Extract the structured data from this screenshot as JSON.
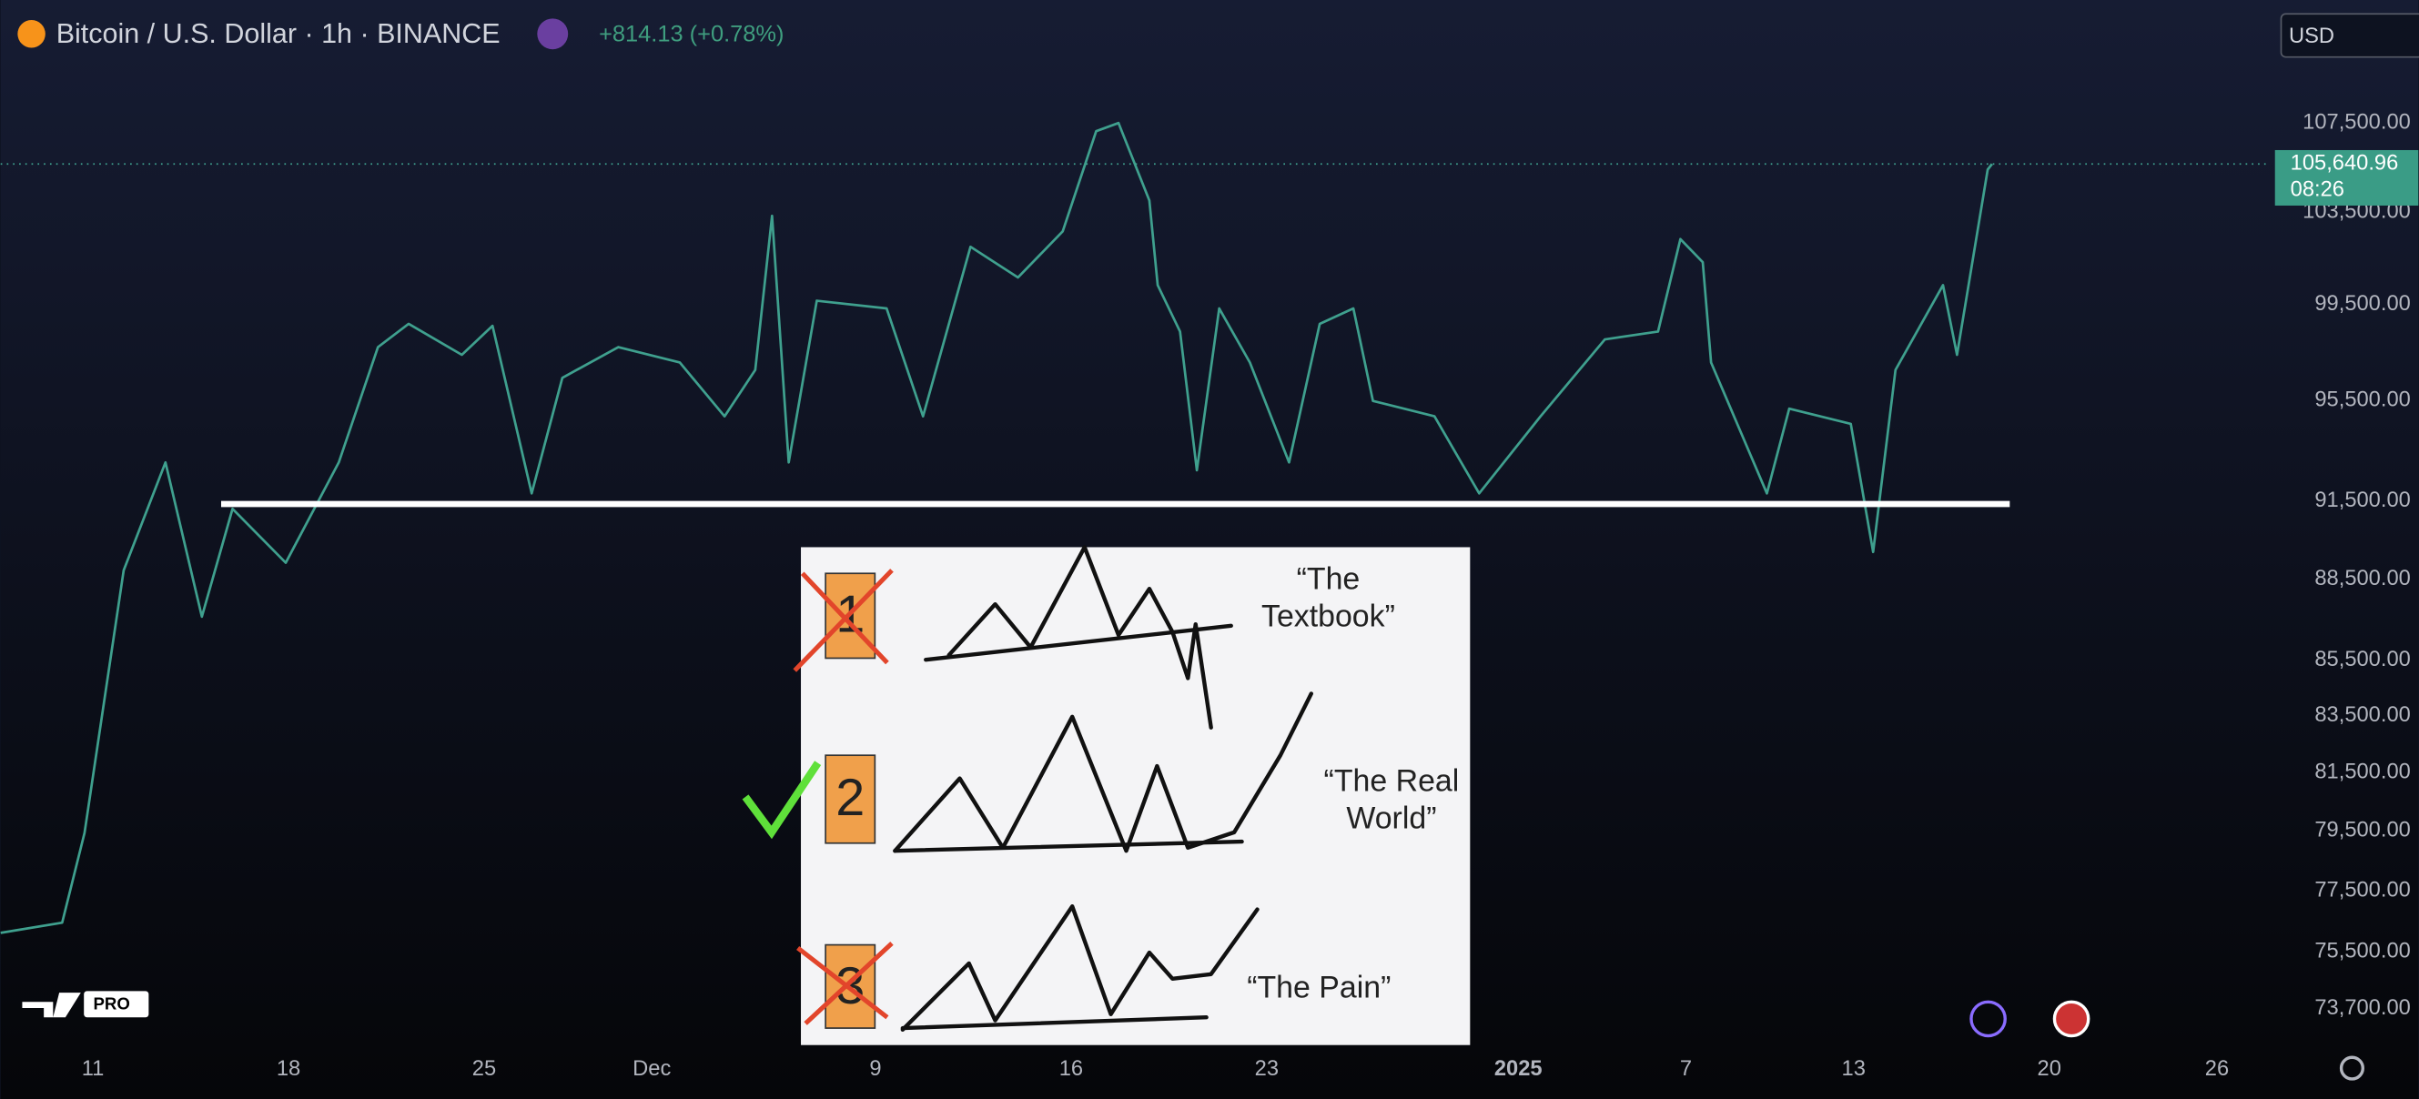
{
  "header": {
    "title": "Bitcoin / U.S. Dollar · 1h · BINANCE",
    "change": "+814.13 (+0.78%)",
    "currency": "USD",
    "badge": "PRO"
  },
  "chart_data": {
    "type": "line",
    "color": "#3fa08e",
    "log_scale": true,
    "grid": false,
    "x": [
      -3.3,
      -1.1,
      -0.3,
      1.1,
      2.6,
      3.9,
      5.0,
      6.9,
      8.8,
      10.2,
      11.3,
      13.2,
      14.3,
      15.7,
      16.8,
      18.8,
      21.0,
      22.6,
      23.7,
      24.3,
      24.9,
      25.9,
      28.4,
      29.7,
      31.4,
      33.1,
      34.7,
      35.9,
      36.7,
      37.8,
      38.1,
      38.9,
      39.5,
      40.3,
      41.4,
      42.8,
      43.9,
      45.1,
      45.8,
      48.0,
      49.6,
      51.8,
      54.1,
      56.0,
      56.8,
      57.6,
      57.9,
      59.9,
      60.7,
      62.9,
      63.7,
      64.5,
      66.2,
      66.7,
      67.8,
      67.95
    ],
    "values": [
      76120,
      76450,
      79430,
      88840,
      93020,
      87100,
      91200,
      89130,
      93020,
      97710,
      98680,
      97390,
      98600,
      91800,
      96440,
      97710,
      97070,
      94870,
      96760,
      103330,
      93020,
      99660,
      99330,
      94870,
      101980,
      100650,
      102650,
      107130,
      107500,
      104010,
      100320,
      98360,
      92710,
      99330,
      97070,
      93020,
      98680,
      99330,
      95490,
      94870,
      91800,
      94870,
      98030,
      98360,
      102310,
      101310,
      97070,
      91800,
      95180,
      94560,
      89540,
      96760,
      100320,
      97390,
      105390,
      105640.96
    ],
    "xlim": [
      -3.3,
      77.8
    ],
    "xticks": [
      {
        "value": 0,
        "label": "11"
      },
      {
        "value": 7,
        "label": "18"
      },
      {
        "value": 14,
        "label": "25"
      },
      {
        "value": 20,
        "label": "Dec"
      },
      {
        "value": 28,
        "label": "9"
      },
      {
        "value": 35,
        "label": "16"
      },
      {
        "value": 42,
        "label": "23"
      },
      {
        "value": 51,
        "label": "2025"
      },
      {
        "value": 57,
        "label": "7"
      },
      {
        "value": 63,
        "label": "13"
      },
      {
        "value": 70,
        "label": "20"
      },
      {
        "value": 76,
        "label": "26"
      }
    ],
    "ylim": [
      72470,
      110350
    ],
    "yticks": [
      {
        "value": 107500,
        "label": "107,500.00"
      },
      {
        "value": 103500,
        "label": "103,500.00"
      },
      {
        "value": 99500,
        "label": "99,500.00"
      },
      {
        "value": 95500,
        "label": "95,500.00"
      },
      {
        "value": 91500,
        "label": "91,500.00"
      },
      {
        "value": 88500,
        "label": "88,500.00"
      },
      {
        "value": 85500,
        "label": "85,500.00"
      },
      {
        "value": 83500,
        "label": "83,500.00"
      },
      {
        "value": 81500,
        "label": "81,500.00"
      },
      {
        "value": 79500,
        "label": "79,500.00"
      },
      {
        "value": 77500,
        "label": "77,500.00"
      },
      {
        "value": 75500,
        "label": "75,500.00"
      },
      {
        "value": 73700,
        "label": "73,700.00"
      }
    ],
    "last_price": {
      "value": 105640.96,
      "label": "105,640.96"
    },
    "countdown": "08:26"
  },
  "inset": {
    "panels": [
      {
        "number": "1",
        "caption": [
          "“The",
          "Textbook”"
        ]
      },
      {
        "number": "2",
        "caption": [
          "“The Real",
          "World”"
        ]
      },
      {
        "number": "3",
        "caption": [
          "“The Pain”"
        ]
      }
    ]
  }
}
